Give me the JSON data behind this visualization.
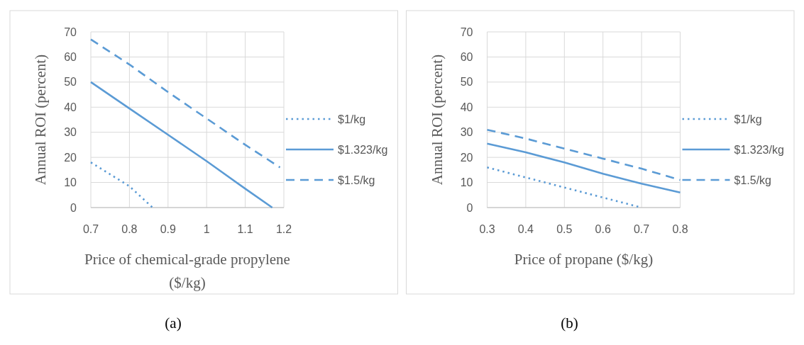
{
  "chart_data": [
    {
      "type": "line",
      "title": "(a)",
      "xlabel": "Price of chemical-grade propylene ($/kg)",
      "ylabel": "Annual ROI (percent)",
      "xlim": [
        0.7,
        1.2
      ],
      "xticks": [
        0.7,
        0.8,
        0.9,
        1,
        1.1,
        1.2
      ],
      "ylim": [
        0,
        70
      ],
      "yticks": [
        0,
        10,
        20,
        30,
        40,
        50,
        60,
        70
      ],
      "grid": true,
      "legend": "right",
      "marker": "none",
      "series": [
        {
          "name": "$1/kg",
          "color": "#5b9bd5",
          "line_style": "dotted",
          "x": [
            0.7,
            0.8,
            0.86
          ],
          "values": [
            18,
            8.5,
            0
          ]
        },
        {
          "name": "$1.323/kg",
          "color": "#5b9bd5",
          "line_style": "solid",
          "x": [
            0.7,
            0.8,
            0.9,
            1,
            1.1,
            1.17
          ],
          "values": [
            50,
            39.5,
            29,
            18.5,
            7.5,
            0
          ]
        },
        {
          "name": "$1.5/kg",
          "color": "#5b9bd5",
          "line_style": "dashed",
          "x": [
            0.7,
            0.8,
            0.9,
            1,
            1.1,
            1.19
          ],
          "values": [
            67,
            57,
            46,
            35.5,
            25,
            16
          ]
        }
      ]
    },
    {
      "type": "line",
      "title": "(b)",
      "xlabel": "Price of propane ($/kg)",
      "ylabel": "Annual ROI (percent)",
      "xlim": [
        0.3,
        0.8
      ],
      "xticks": [
        0.3,
        0.4,
        0.5,
        0.6,
        0.7,
        0.8
      ],
      "ylim": [
        0,
        70
      ],
      "yticks": [
        0,
        10,
        20,
        30,
        40,
        50,
        60,
        70
      ],
      "grid": true,
      "legend": "right",
      "marker": "none",
      "series": [
        {
          "name": "$1/kg",
          "color": "#5b9bd5",
          "line_style": "dotted",
          "x": [
            0.3,
            0.4,
            0.5,
            0.6,
            0.7
          ],
          "values": [
            16,
            12,
            8,
            4,
            0
          ]
        },
        {
          "name": "$1.323/kg",
          "color": "#5b9bd5",
          "line_style": "solid",
          "x": [
            0.3,
            0.4,
            0.5,
            0.6,
            0.7,
            0.8
          ],
          "values": [
            25.5,
            22,
            18,
            13.5,
            9.5,
            6
          ]
        },
        {
          "name": "$1.5/kg",
          "color": "#5b9bd5",
          "line_style": "dashed",
          "x": [
            0.3,
            0.4,
            0.5,
            0.6,
            0.7,
            0.8
          ],
          "values": [
            31,
            27.5,
            23.5,
            19.5,
            15.5,
            11
          ]
        }
      ]
    }
  ]
}
